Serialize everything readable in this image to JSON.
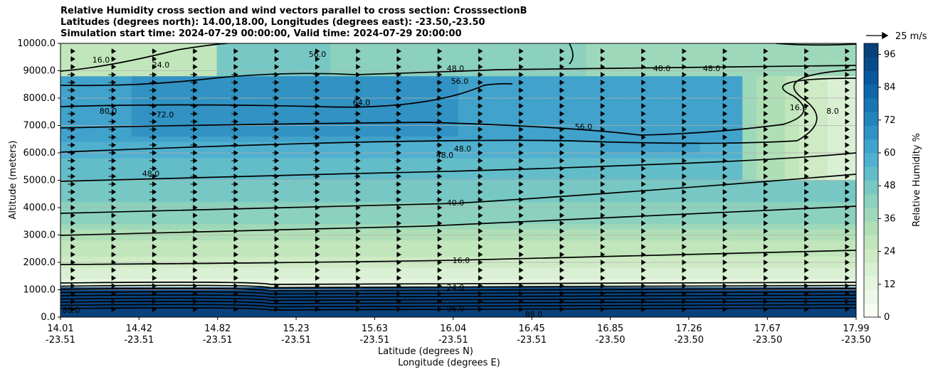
{
  "titles": {
    "line1": "Relative Humidity cross section and wind vectors parallel to cross section: CrosssectionB",
    "line2": "Latitudes (degrees north): 14.00,18.00, Longitudes (degrees east): -23.50,-23.50",
    "line3": "Simulation start time: 2024-07-29 00:00:00, Valid time: 2024-07-29 20:00:00"
  },
  "chart_data": {
    "type": "heatmap",
    "title": "Relative Humidity cross section and wind vectors parallel to cross section: CrosssectionB",
    "ylabel": "Altitude (meters)",
    "xlabel_line1": "Latitude (degrees N)",
    "xlabel_line2": "Longitude (degrees E)",
    "colorbar_label": "Relative Humidity %",
    "quiver_key": "25 m/s",
    "ylim": [
      0,
      10000
    ],
    "yticks": [
      "0.0",
      "1000.0",
      "2000.0",
      "3000.0",
      "4000.0",
      "5000.0",
      "6000.0",
      "7000.0",
      "8000.0",
      "9000.0",
      "10000.0"
    ],
    "xticks": [
      {
        "lat": "14.01",
        "lon": "-23.51"
      },
      {
        "lat": "14.42",
        "lon": "-23.51"
      },
      {
        "lat": "14.82",
        "lon": "-23.51"
      },
      {
        "lat": "15.23",
        "lon": "-23.51"
      },
      {
        "lat": "15.63",
        "lon": "-23.51"
      },
      {
        "lat": "16.04",
        "lon": "-23.51"
      },
      {
        "lat": "16.45",
        "lon": "-23.51"
      },
      {
        "lat": "16.85",
        "lon": "-23.50"
      },
      {
        "lat": "17.26",
        "lon": "-23.50"
      },
      {
        "lat": "17.67",
        "lon": "-23.50"
      },
      {
        "lat": "17.99",
        "lon": "-23.50"
      }
    ],
    "colorbar_ticks": [
      "0",
      "12",
      "24",
      "36",
      "48",
      "60",
      "72",
      "84",
      "96"
    ],
    "colorbar_levels": [
      0,
      4,
      8,
      12,
      16,
      20,
      24,
      28,
      32,
      36,
      40,
      44,
      48,
      52,
      56,
      60,
      64,
      68,
      72,
      76,
      80,
      84,
      88,
      92,
      96,
      100
    ],
    "colors": [
      "#f7fcf0",
      "#eef8ea",
      "#e4f4df",
      "#daf0d4",
      "#cfebc5",
      "#c1e6bb",
      "#b0dfb6",
      "#9ed8ba",
      "#8bd1be",
      "#77c8c4",
      "#63bdc9",
      "#51b0cf",
      "#41a2cb",
      "#3292c3",
      "#2584bb",
      "#1a75b3",
      "#0f66a9",
      "#08589e",
      "#084b8a",
      "#08407a"
    ],
    "contour_labels": [
      "16.0",
      "24.0",
      "32.0",
      "40.0",
      "48.0",
      "56.0",
      "64.0",
      "72.0",
      "80.0",
      "88.0",
      "96.0",
      "8.0"
    ],
    "grid": true
  }
}
